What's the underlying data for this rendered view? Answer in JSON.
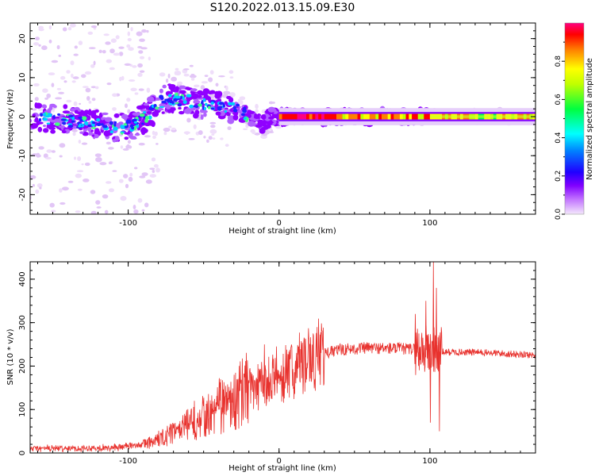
{
  "figure": {
    "title": "S120.2022.013.15.09.E30"
  },
  "chart_data": [
    {
      "type": "heatmap",
      "xlabel": "Height of straight line (km)",
      "ylabel": "Frequency (Hz)",
      "xlim": [
        -165,
        170
      ],
      "ylim": [
        -25,
        24
      ],
      "xticks": [
        -100,
        0,
        100
      ],
      "yticks": [
        -20,
        -10,
        0,
        10,
        20
      ],
      "colorbar": {
        "label": "Normalized spectral amplitude",
        "range": [
          0,
          1
        ],
        "ticks": [
          0.0,
          0.2,
          0.4,
          0.6,
          0.8
        ],
        "colors": [
          "#f4e8fb",
          "#8000ff",
          "#0000ff",
          "#00ffff",
          "#00ff00",
          "#ffff00",
          "#ff8000",
          "#ff0000",
          "#ff0080"
        ]
      },
      "centerline": [
        [
          -160,
          0
        ],
        [
          -140,
          -1
        ],
        [
          -120,
          -2
        ],
        [
          -105,
          -3
        ],
        [
          -95,
          -2
        ],
        [
          -85,
          1
        ],
        [
          -75,
          5
        ],
        [
          -60,
          4
        ],
        [
          -45,
          3
        ],
        [
          -30,
          2
        ],
        [
          -20,
          0
        ],
        [
          -12,
          -2
        ],
        [
          -5,
          0
        ],
        [
          0,
          0
        ],
        [
          50,
          0
        ],
        [
          100,
          0
        ],
        [
          170,
          0
        ]
      ]
    },
    {
      "type": "line",
      "xlabel": "Height of straight line (km)",
      "ylabel": "SNR (10 * v/v)",
      "xlim": [
        -165,
        170
      ],
      "ylim": [
        0,
        440
      ],
      "xticks": [
        -100,
        0,
        100
      ],
      "yticks": [
        0,
        100,
        200,
        300,
        400
      ],
      "color": "#e8322e",
      "trend": [
        [
          -165,
          10
        ],
        [
          -110,
          12
        ],
        [
          -90,
          20
        ],
        [
          -80,
          30
        ],
        [
          -70,
          45
        ],
        [
          -60,
          65
        ],
        [
          -50,
          80
        ],
        [
          -40,
          100
        ],
        [
          -30,
          120
        ],
        [
          -20,
          140
        ],
        [
          -10,
          155
        ],
        [
          0,
          170
        ],
        [
          10,
          190
        ],
        [
          20,
          210
        ],
        [
          30,
          228
        ],
        [
          40,
          238
        ],
        [
          60,
          242
        ],
        [
          80,
          240
        ],
        [
          95,
          238
        ],
        [
          100,
          235
        ],
        [
          110,
          232
        ],
        [
          130,
          232
        ],
        [
          170,
          225
        ]
      ],
      "spikes": [
        [
          102,
          440
        ],
        [
          100,
          70
        ],
        [
          97,
          350
        ],
        [
          104,
          380
        ],
        [
          106,
          50
        ],
        [
          90,
          320
        ],
        [
          -40,
          170
        ],
        [
          -10,
          250
        ],
        [
          -2,
          245
        ],
        [
          12,
          240
        ]
      ]
    }
  ]
}
